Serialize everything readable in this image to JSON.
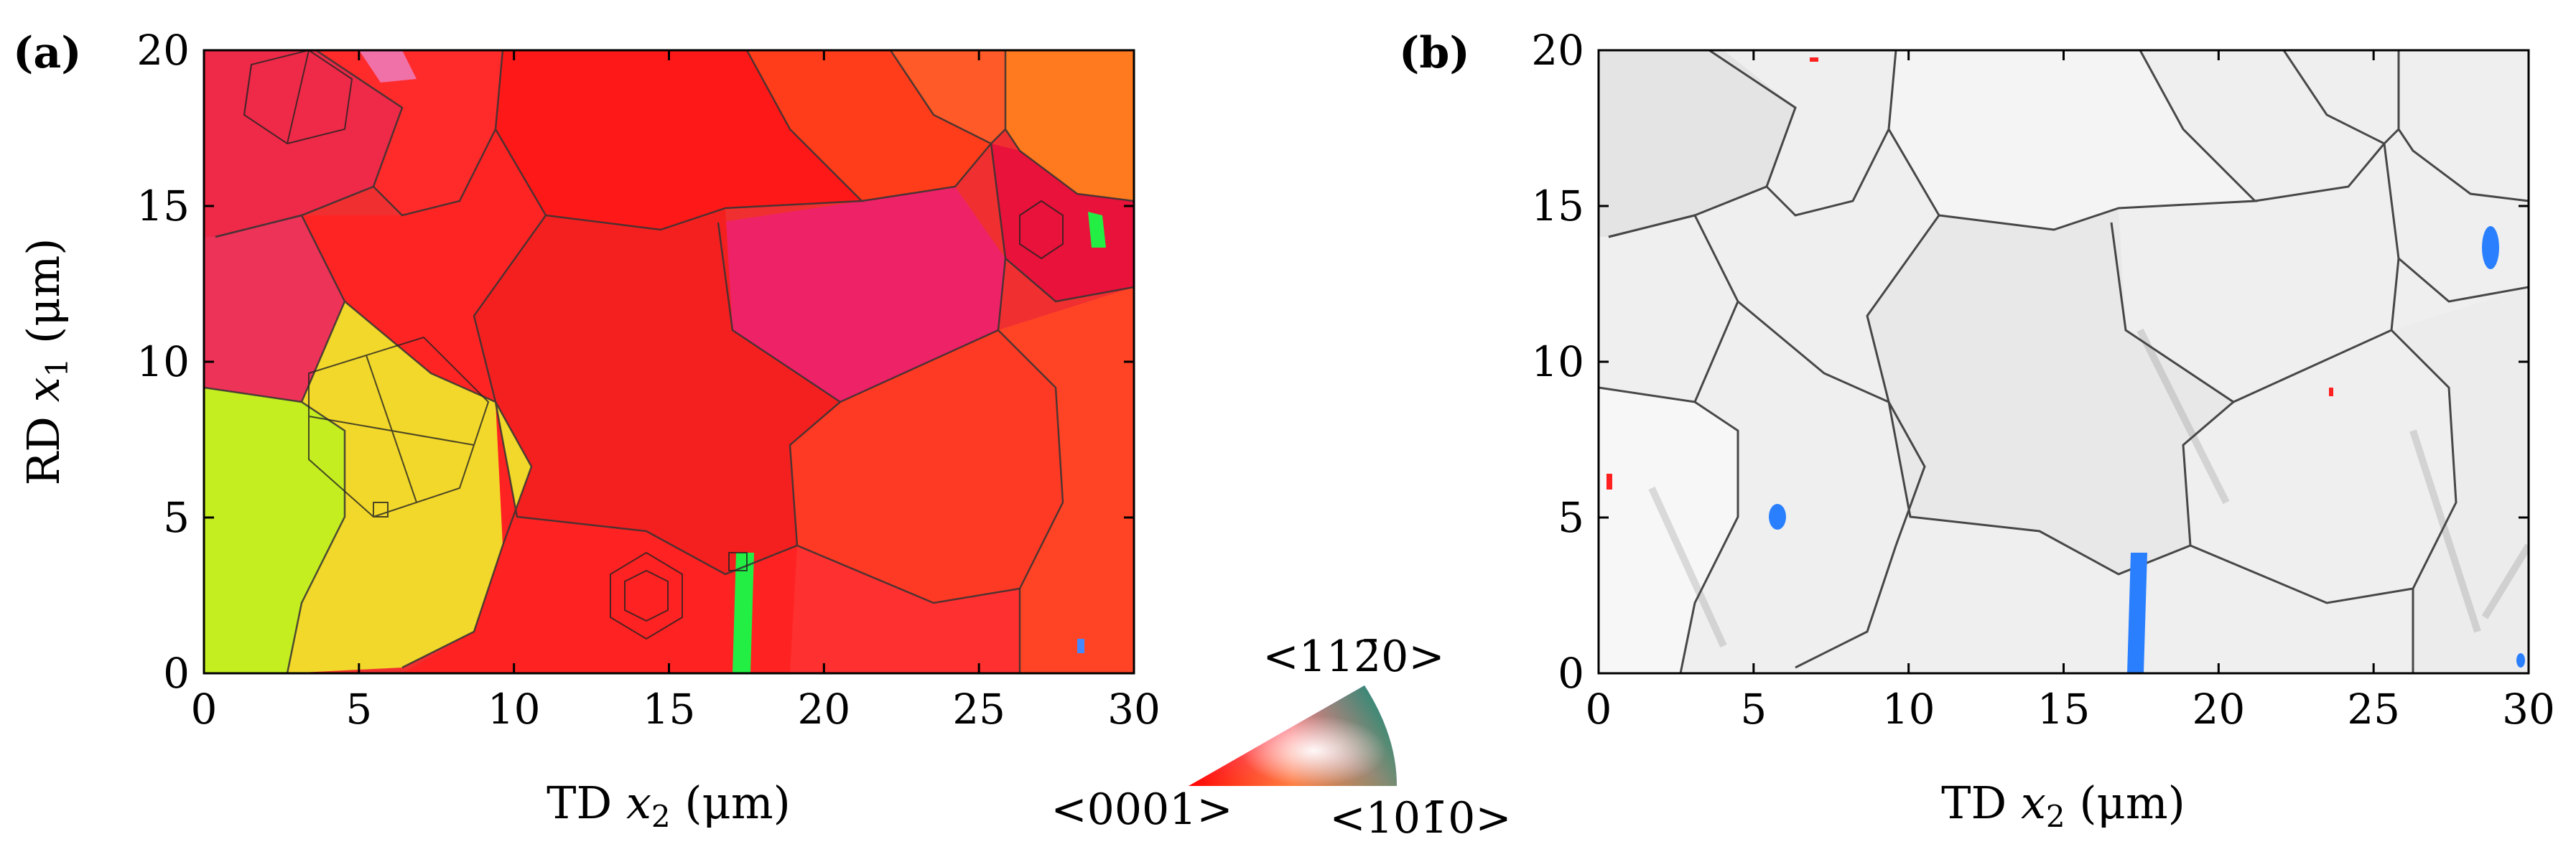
{
  "panels": [
    {
      "id": "a",
      "label": "(a)",
      "xlabel_prefix": "TD ",
      "xlabel_var": "x",
      "xlabel_sub": "2",
      "xlabel_unit": " (μm)",
      "ylabel_prefix": "RD ",
      "ylabel_var": "x",
      "ylabel_sub": "1",
      "ylabel_unit": " (μm)",
      "xticks": [
        "0",
        "5",
        "10",
        "15",
        "20",
        "25",
        "30"
      ],
      "yticks": [
        "0",
        "5",
        "10",
        "15",
        "20"
      ]
    },
    {
      "id": "b",
      "label": "(b)",
      "xlabel_prefix": "TD ",
      "xlabel_var": "x",
      "xlabel_sub": "2",
      "xlabel_unit": " (μm)",
      "xticks": [
        "0",
        "5",
        "10",
        "15",
        "20",
        "25",
        "30"
      ],
      "yticks": [
        "0",
        "5",
        "10",
        "15",
        "20"
      ]
    }
  ],
  "ipf_legend": {
    "top": "<112̄0>",
    "left": "<0001>",
    "right": "<101̄0>"
  },
  "chart_data": [
    {
      "type": "heatmap",
      "description_kind": "EBSD inverse pole figure orientation map",
      "xlim": [
        0,
        30
      ],
      "ylim": [
        0,
        20
      ],
      "colors": {
        "basal": "#ff2020",
        "prism_a": "#2020ff",
        "prism_m": "#20ff20",
        "yellow_grain": "#f0e030",
        "green_grain": "#b8f020"
      }
    },
    {
      "type": "heatmap",
      "description_kind": "grayscale grain boundary map",
      "xlim": [
        0,
        30
      ],
      "ylim": [
        0,
        20
      ],
      "colors": {
        "background": "#eeeeee",
        "boundary": "#222222",
        "highlight": "#2a7fff",
        "red_marks": "#ff2020"
      }
    }
  ]
}
